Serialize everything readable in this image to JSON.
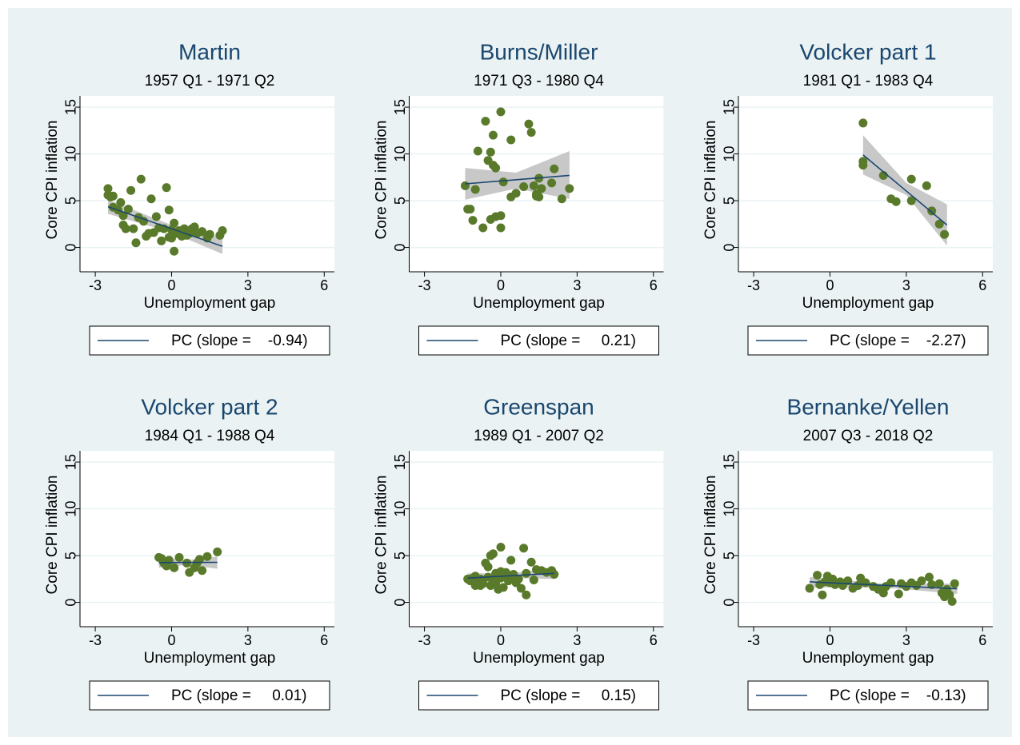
{
  "chart_data": [
    {
      "type": "scatter",
      "title": "Martin",
      "subtitle": "1957 Q1 - 1971 Q2",
      "xlabel": "Unemployment gap",
      "ylabel": "Core CPI inflation",
      "color": "#5a7a2b",
      "x": [
        -2.5,
        -2.5,
        -2.4,
        -2.3,
        -2.3,
        -2.1,
        -2.0,
        -1.9,
        -1.9,
        -1.8,
        -1.7,
        -1.6,
        -1.5,
        -1.3,
        -1.2,
        -1.1,
        -1.0,
        -0.8,
        -0.7,
        -0.6,
        -0.5,
        -0.4,
        -0.3,
        -0.2,
        -0.1,
        -0.1,
        0.0,
        0.0,
        0.1,
        0.1,
        0.2,
        0.3,
        0.4,
        0.5,
        0.7,
        0.8,
        0.9,
        1.0,
        1.2,
        1.4,
        1.5,
        1.9,
        2.0,
        -1.4,
        -0.9,
        0.6
      ],
      "y": [
        6.3,
        5.6,
        5.4,
        5.5,
        4.3,
        4.0,
        4.8,
        3.4,
        2.4,
        2.0,
        4.1,
        6.1,
        2.0,
        3.2,
        7.3,
        2.8,
        1.2,
        5.2,
        1.6,
        3.3,
        2.1,
        0.7,
        2.0,
        6.4,
        4.0,
        1.1,
        1.9,
        1.0,
        -0.4,
        2.6,
        1.5,
        1.8,
        1.2,
        2.0,
        1.5,
        2.0,
        2.2,
        1.5,
        1.7,
        1.0,
        1.4,
        1.3,
        1.8,
        0.5,
        1.5,
        1.3
      ],
      "fit": {
        "name": "PC (slope =    -0.94)",
        "color": "#1a476f",
        "x": [
          -2.5,
          2.0
        ],
        "y": [
          4.35,
          0.12
        ]
      },
      "band": {
        "color": "#c8c8c8",
        "x": [
          -2.5,
          0.0,
          2.0
        ],
        "lower": [
          3.6,
          1.6,
          -0.7
        ],
        "upper": [
          5.1,
          2.4,
          1.0
        ]
      },
      "xlim": [
        -3.6,
        6.4
      ],
      "ylim": [
        -2.6,
        16.2
      ],
      "xticks": [
        -3,
        0,
        3,
        6
      ],
      "yticks": [
        0,
        5,
        10,
        15
      ],
      "grid": true
    },
    {
      "type": "scatter",
      "title": "Burns/Miller",
      "subtitle": "1971 Q3 - 1980 Q4",
      "xlabel": "Unemployment gap",
      "ylabel": "Core CPI inflation",
      "color": "#5a7a2b",
      "x": [
        -1.4,
        -1.3,
        -1.2,
        -1.1,
        -1.0,
        -0.9,
        -0.7,
        -0.6,
        -0.5,
        -0.4,
        -0.4,
        -0.3,
        -0.3,
        -0.2,
        -0.2,
        0.0,
        0.0,
        0.0,
        0.1,
        0.4,
        0.4,
        0.6,
        0.9,
        1.1,
        1.2,
        1.3,
        1.4,
        1.5,
        1.5,
        1.6,
        2.0,
        2.1,
        2.4,
        2.7,
        1.4
      ],
      "y": [
        6.6,
        4.1,
        4.1,
        2.9,
        6.2,
        10.3,
        2.1,
        13.5,
        9.3,
        10.2,
        3.0,
        8.8,
        12.0,
        8.5,
        3.3,
        14.5,
        3.4,
        2.1,
        7.0,
        11.5,
        5.4,
        5.8,
        6.5,
        13.2,
        12.3,
        6.6,
        5.7,
        7.4,
        5.4,
        6.3,
        6.9,
        8.4,
        5.2,
        6.3,
        5.5
      ],
      "fit": {
        "name": "PC (slope =     0.21)",
        "color": "#1a476f",
        "x": [
          -1.4,
          2.7
        ],
        "y": [
          6.8,
          7.7
        ]
      },
      "band": {
        "color": "#c8c8c8",
        "x": [
          -1.4,
          0.6,
          2.7
        ],
        "lower": [
          5.1,
          6.3,
          5.2
        ],
        "upper": [
          8.5,
          8.0,
          10.3
        ]
      },
      "xlim": [
        -3.6,
        6.4
      ],
      "ylim": [
        -2.6,
        16.2
      ],
      "xticks": [
        -3,
        0,
        3,
        6
      ],
      "yticks": [
        0,
        5,
        10,
        15
      ],
      "grid": true
    },
    {
      "type": "scatter",
      "title": "Volcker part 1",
      "subtitle": "1981 Q1 - 1983 Q4",
      "xlabel": "Unemployment gap",
      "ylabel": "Core CPI inflation",
      "color": "#5a7a2b",
      "x": [
        1.3,
        1.3,
        1.3,
        2.1,
        2.4,
        2.6,
        3.2,
        3.2,
        3.8,
        4.0,
        4.3,
        4.5
      ],
      "y": [
        13.3,
        9.2,
        8.8,
        7.7,
        5.2,
        4.9,
        7.3,
        5.0,
        6.6,
        3.9,
        2.5,
        1.4
      ],
      "fit": {
        "name": "PC (slope =    -2.27)",
        "color": "#1a476f",
        "x": [
          1.3,
          4.6
        ],
        "y": [
          9.9,
          2.4
        ]
      },
      "band": {
        "color": "#c8c8c8",
        "x": [
          1.3,
          3.0,
          4.6
        ],
        "lower": [
          7.8,
          5.6,
          0.2
        ],
        "upper": [
          12.0,
          6.9,
          4.6
        ]
      },
      "xlim": [
        -3.6,
        6.4
      ],
      "ylim": [
        -2.6,
        16.2
      ],
      "xticks": [
        -3,
        0,
        3,
        6
      ],
      "yticks": [
        0,
        5,
        10,
        15
      ],
      "grid": true
    },
    {
      "type": "scatter",
      "title": "Volcker part 2",
      "subtitle": "1984 Q1 - 1988 Q4",
      "xlabel": "Unemployment gap",
      "ylabel": "Core CPI inflation",
      "color": "#5a7a2b",
      "x": [
        -0.5,
        -0.4,
        -0.3,
        -0.2,
        -0.1,
        0.1,
        0.3,
        0.6,
        0.7,
        0.9,
        1.0,
        1.1,
        1.2,
        1.4,
        1.8
      ],
      "y": [
        4.8,
        4.7,
        4.2,
        3.9,
        4.5,
        3.7,
        4.8,
        4.2,
        3.2,
        3.7,
        4.2,
        4.6,
        3.4,
        4.9,
        5.4
      ],
      "fit": {
        "name": "PC (slope =     0.01)",
        "color": "#1a476f",
        "x": [
          -0.5,
          1.8
        ],
        "y": [
          4.25,
          4.28
        ]
      },
      "band": {
        "color": "#c8c8c8",
        "x": [
          -0.5,
          0.6,
          1.8
        ],
        "lower": [
          3.7,
          4.0,
          3.6
        ],
        "upper": [
          4.8,
          4.5,
          4.9
        ]
      },
      "xlim": [
        -3.6,
        6.4
      ],
      "ylim": [
        -2.6,
        16.2
      ],
      "xticks": [
        -3,
        0,
        3,
        6
      ],
      "yticks": [
        0,
        5,
        10,
        15
      ],
      "grid": true
    },
    {
      "type": "scatter",
      "title": "Greenspan",
      "subtitle": "1989 Q1 - 2007 Q2",
      "xlabel": "Unemployment gap",
      "ylabel": "Core CPI inflation",
      "color": "#5a7a2b",
      "x": [
        -1.3,
        -1.2,
        -1.1,
        -1.0,
        -1.0,
        -0.9,
        -0.8,
        -0.7,
        -0.6,
        -0.5,
        -0.5,
        -0.4,
        -0.4,
        -0.3,
        -0.3,
        -0.2,
        -0.2,
        -0.1,
        0.0,
        0.0,
        0.0,
        0.1,
        0.1,
        0.2,
        0.3,
        0.4,
        0.4,
        0.5,
        0.6,
        0.7,
        0.8,
        0.9,
        1.0,
        1.0,
        1.2,
        1.3,
        1.4,
        1.6,
        1.8,
        2.0,
        2.1,
        -0.8,
        0.2
      ],
      "y": [
        2.5,
        2.3,
        2.6,
        1.8,
        2.8,
        2.2,
        2.5,
        2.0,
        4.2,
        3.8,
        2.7,
        5.0,
        1.8,
        5.2,
        2.4,
        3.1,
        2.0,
        1.4,
        5.9,
        3.3,
        2.6,
        2.9,
        1.6,
        3.2,
        2.3,
        4.5,
        2.8,
        3.0,
        2.1,
        2.5,
        1.5,
        5.8,
        0.8,
        3.1,
        4.3,
        2.4,
        3.5,
        3.4,
        3.2,
        3.4,
        3.0,
        1.8,
        2.7
      ],
      "fit": {
        "name": "PC (slope =     0.15)",
        "color": "#1a476f",
        "x": [
          -1.3,
          2.1
        ],
        "y": [
          2.6,
          3.1
        ]
      },
      "band": {
        "color": "#c8c8c8",
        "x": [
          -1.3,
          0.4,
          2.1
        ],
        "lower": [
          2.1,
          2.6,
          2.5
        ],
        "upper": [
          3.1,
          3.1,
          3.7
        ]
      },
      "xlim": [
        -3.6,
        6.4
      ],
      "ylim": [
        -2.6,
        16.2
      ],
      "xticks": [
        -3,
        0,
        3,
        6
      ],
      "yticks": [
        0,
        5,
        10,
        15
      ],
      "grid": true
    },
    {
      "type": "scatter",
      "title": "Bernanke/Yellen",
      "subtitle": "2007 Q3 - 2018 Q2",
      "xlabel": "Unemployment gap",
      "ylabel": "Core CPI inflation",
      "color": "#5a7a2b",
      "x": [
        -0.8,
        -0.5,
        -0.4,
        -0.3,
        -0.2,
        -0.1,
        0.0,
        0.1,
        0.2,
        0.4,
        0.5,
        0.7,
        0.9,
        1.1,
        1.2,
        1.4,
        1.7,
        1.9,
        2.1,
        2.2,
        2.4,
        2.7,
        2.8,
        3.0,
        3.2,
        3.4,
        3.6,
        3.9,
        4.0,
        4.3,
        4.4,
        4.5,
        4.6,
        4.7,
        4.8,
        4.9
      ],
      "y": [
        1.5,
        2.9,
        1.9,
        0.8,
        2.2,
        2.8,
        2.1,
        2.5,
        1.9,
        2.2,
        1.8,
        2.3,
        1.5,
        1.8,
        2.6,
        2.1,
        1.7,
        1.4,
        1.0,
        1.7,
        2.1,
        0.9,
        2.0,
        1.7,
        2.1,
        1.8,
        2.3,
        2.7,
        1.9,
        2.0,
        1.0,
        0.6,
        1.4,
        0.8,
        0.1,
        2.0
      ],
      "fit": {
        "name": "PC (slope =    -0.13)",
        "color": "#1a476f",
        "x": [
          -0.8,
          5.0
        ],
        "y": [
          2.2,
          1.45
        ]
      },
      "band": {
        "color": "#c8c8c8",
        "x": [
          -0.8,
          2.1,
          5.0
        ],
        "lower": [
          1.6,
          1.6,
          0.9
        ],
        "upper": [
          2.7,
          2.0,
          2.0
        ]
      },
      "xlim": [
        -3.6,
        6.4
      ],
      "ylim": [
        -2.6,
        16.2
      ],
      "xticks": [
        -3,
        0,
        3,
        6
      ],
      "yticks": [
        0,
        5,
        10,
        15
      ],
      "grid": true
    }
  ]
}
